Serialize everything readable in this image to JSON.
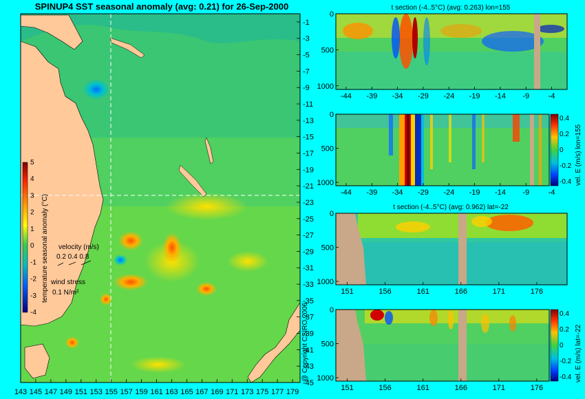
{
  "main_title": "SPINUP4 SST seasonal anomaly (avg: 0.21) for 26-Sep-2000",
  "map": {
    "lat_ticks": [
      "-1",
      "-3",
      "-5",
      "-7",
      "-9",
      "-11",
      "-13",
      "-15",
      "-17",
      "-19",
      "-21",
      "-23",
      "-25",
      "-27",
      "-29",
      "-31",
      "-33",
      "-35",
      "-37",
      "-39",
      "-41",
      "-43",
      "-45"
    ],
    "lon_ticks": [
      "143",
      "145",
      "147",
      "149",
      "151",
      "153",
      "155",
      "157",
      "159",
      "161",
      "163",
      "165",
      "167",
      "169",
      "171",
      "173",
      "175",
      "177",
      "179"
    ],
    "colorbar": {
      "label": "temperature seasonal anomaly (°C)",
      "ticks": [
        "5",
        "4",
        "3",
        "2",
        "1",
        "0",
        "-1",
        "-2",
        "-3",
        "-4"
      ]
    },
    "velocity_legend": {
      "title": "velocity (m/s)",
      "scale": "0.2 0.4 0.8"
    },
    "wind_legend": {
      "title": "wind stress",
      "scale": "0.1 N/m²"
    }
  },
  "copyright": "@ Copyright CSIRO 2006",
  "panels": [
    {
      "title": "t section (-4..5°C) (avg: 0.263) lon=155",
      "x_ticks": [
        "-44",
        "-39",
        "-34",
        "-29",
        "-24",
        "-19",
        "-14",
        "-9",
        "-4"
      ],
      "y_ticks": [
        "0",
        "500",
        "1000"
      ]
    },
    {
      "title": "",
      "x_ticks": [
        "-44",
        "-39",
        "-34",
        "-29",
        "-24",
        "-19",
        "-14",
        "-9",
        "-4"
      ],
      "y_ticks": [
        "0",
        "500",
        "1000"
      ],
      "colorbar_label": "vel. E (m/s) lon=155",
      "colorbar_ticks": [
        "0.4",
        "0.2",
        "0",
        "-0.2",
        "-0.4"
      ]
    },
    {
      "title": "t section (-4..5°C) (avg: 0.962) lat=-22",
      "x_ticks": [
        "151",
        "156",
        "161",
        "166",
        "171",
        "176"
      ],
      "y_ticks": [
        "0",
        "500",
        "1000"
      ]
    },
    {
      "title": "",
      "x_ticks": [
        "151",
        "156",
        "161",
        "166",
        "171",
        "176"
      ],
      "y_ticks": [
        "0",
        "500",
        "1000"
      ],
      "colorbar_label": "vel. E (m/s) lat=-22",
      "colorbar_ticks": [
        "0.4",
        "0.2",
        "0",
        "-0.2",
        "-0.4"
      ]
    }
  ],
  "chart_data": [
    {
      "type": "heatmap",
      "title": "SPINUP4 SST seasonal anomaly (avg: 0.21) for 26-Sep-2000",
      "xlabel": "",
      "ylabel": "",
      "xlim": [
        143,
        180
      ],
      "ylim": [
        -45,
        0
      ],
      "colorbar_range": [
        -4,
        5
      ],
      "colorbar_label": "temperature seasonal anomaly (°C)",
      "section_lines": {
        "lon": 155,
        "lat": -22
      }
    },
    {
      "type": "heatmap",
      "title": "t section (-4..5°C) (avg: 0.263) lon=155",
      "xlim": [
        -46,
        -1
      ],
      "ylim": [
        0,
        1050
      ],
      "y_inverted": true
    },
    {
      "type": "heatmap",
      "title": "",
      "xlim": [
        -46,
        -1
      ],
      "ylim": [
        0,
        1050
      ],
      "y_inverted": true,
      "colorbar_range": [
        -0.4,
        0.4
      ],
      "colorbar_label": "vel. E (m/s) lon=155"
    },
    {
      "type": "heatmap",
      "title": "t section (-4..5°C) (avg: 0.962) lat=-22",
      "xlim": [
        149.5,
        180
      ],
      "ylim": [
        0,
        1050
      ],
      "y_inverted": true
    },
    {
      "type": "heatmap",
      "title": "",
      "xlim": [
        149.5,
        180
      ],
      "ylim": [
        0,
        1050
      ],
      "y_inverted": true,
      "colorbar_range": [
        -0.4,
        0.4
      ],
      "colorbar_label": "vel. E (m/s) lat=-22"
    }
  ]
}
